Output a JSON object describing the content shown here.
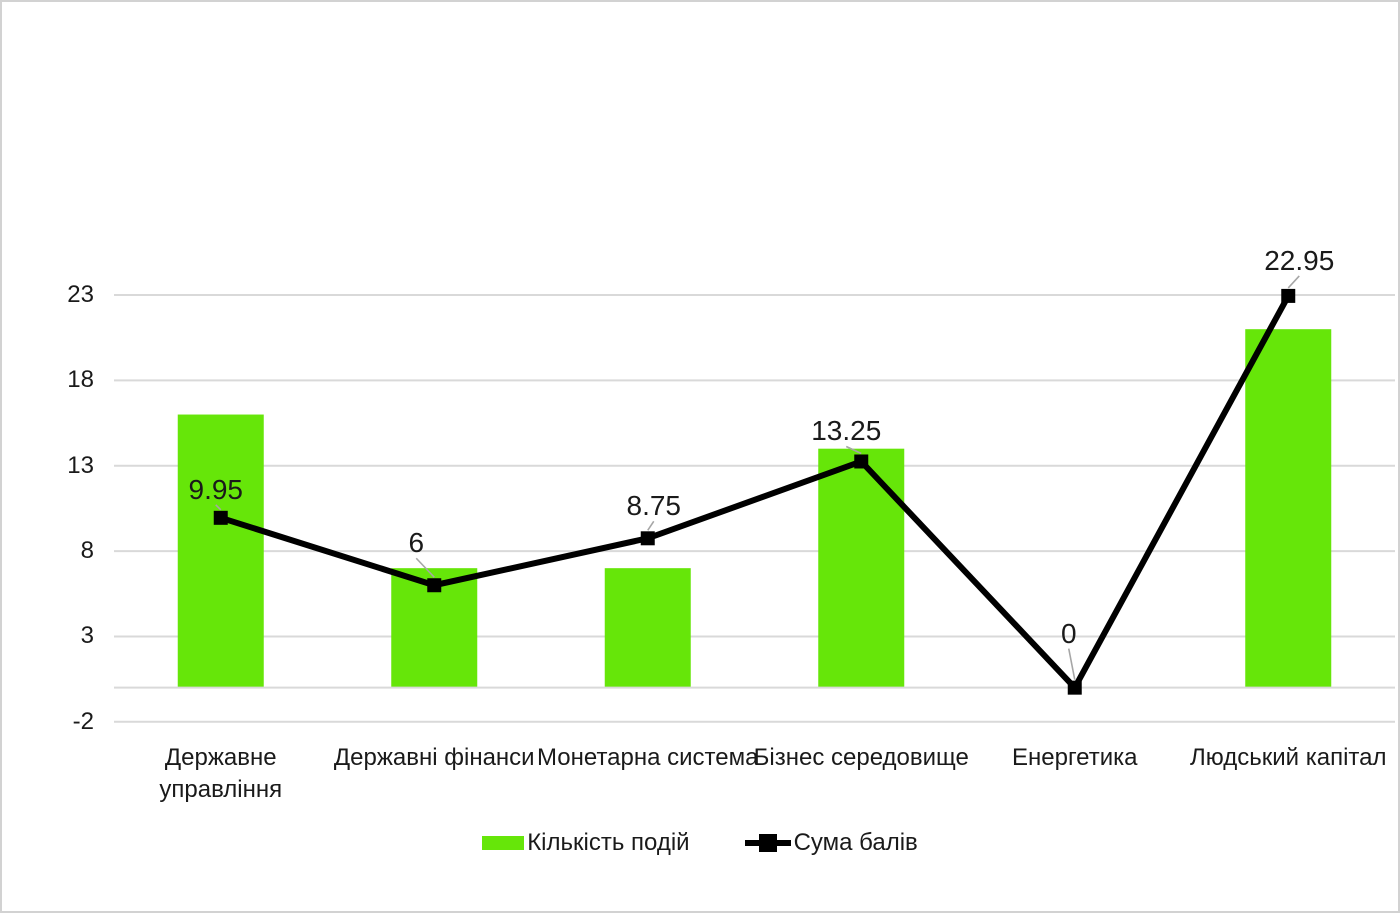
{
  "chart_data": {
    "type": "combo",
    "categories": [
      "Державне\nуправління",
      "Державні фінанси",
      "Монетарна система",
      "Бізнес середовище",
      "Енергетика",
      "Людський капітал"
    ],
    "series": [
      {
        "name": "Кількість подій",
        "type": "bar",
        "color": "#66E609",
        "values": [
          16,
          7,
          7,
          14,
          0,
          21
        ]
      },
      {
        "name": "Сума балів",
        "type": "line",
        "color": "#000000",
        "marker": "square",
        "values": [
          9.95,
          6,
          8.75,
          13.25,
          0,
          22.95
        ],
        "data_labels": [
          "9.95",
          "6",
          "8.75",
          "13.25",
          "0",
          "22.95"
        ]
      }
    ],
    "y_axis": {
      "min": -2,
      "max": 23,
      "ticks": [
        -2,
        3,
        8,
        13,
        18,
        23
      ]
    },
    "x_axis_baseline": 0,
    "grid": true,
    "legend_position": "bottom",
    "title": "",
    "colors": {
      "gridline": "#D9D9D9",
      "leader_line": "#A6A6A6",
      "text": "#1A1A1A",
      "background": "#FFFFFF",
      "border": "#D2D2D2"
    }
  }
}
